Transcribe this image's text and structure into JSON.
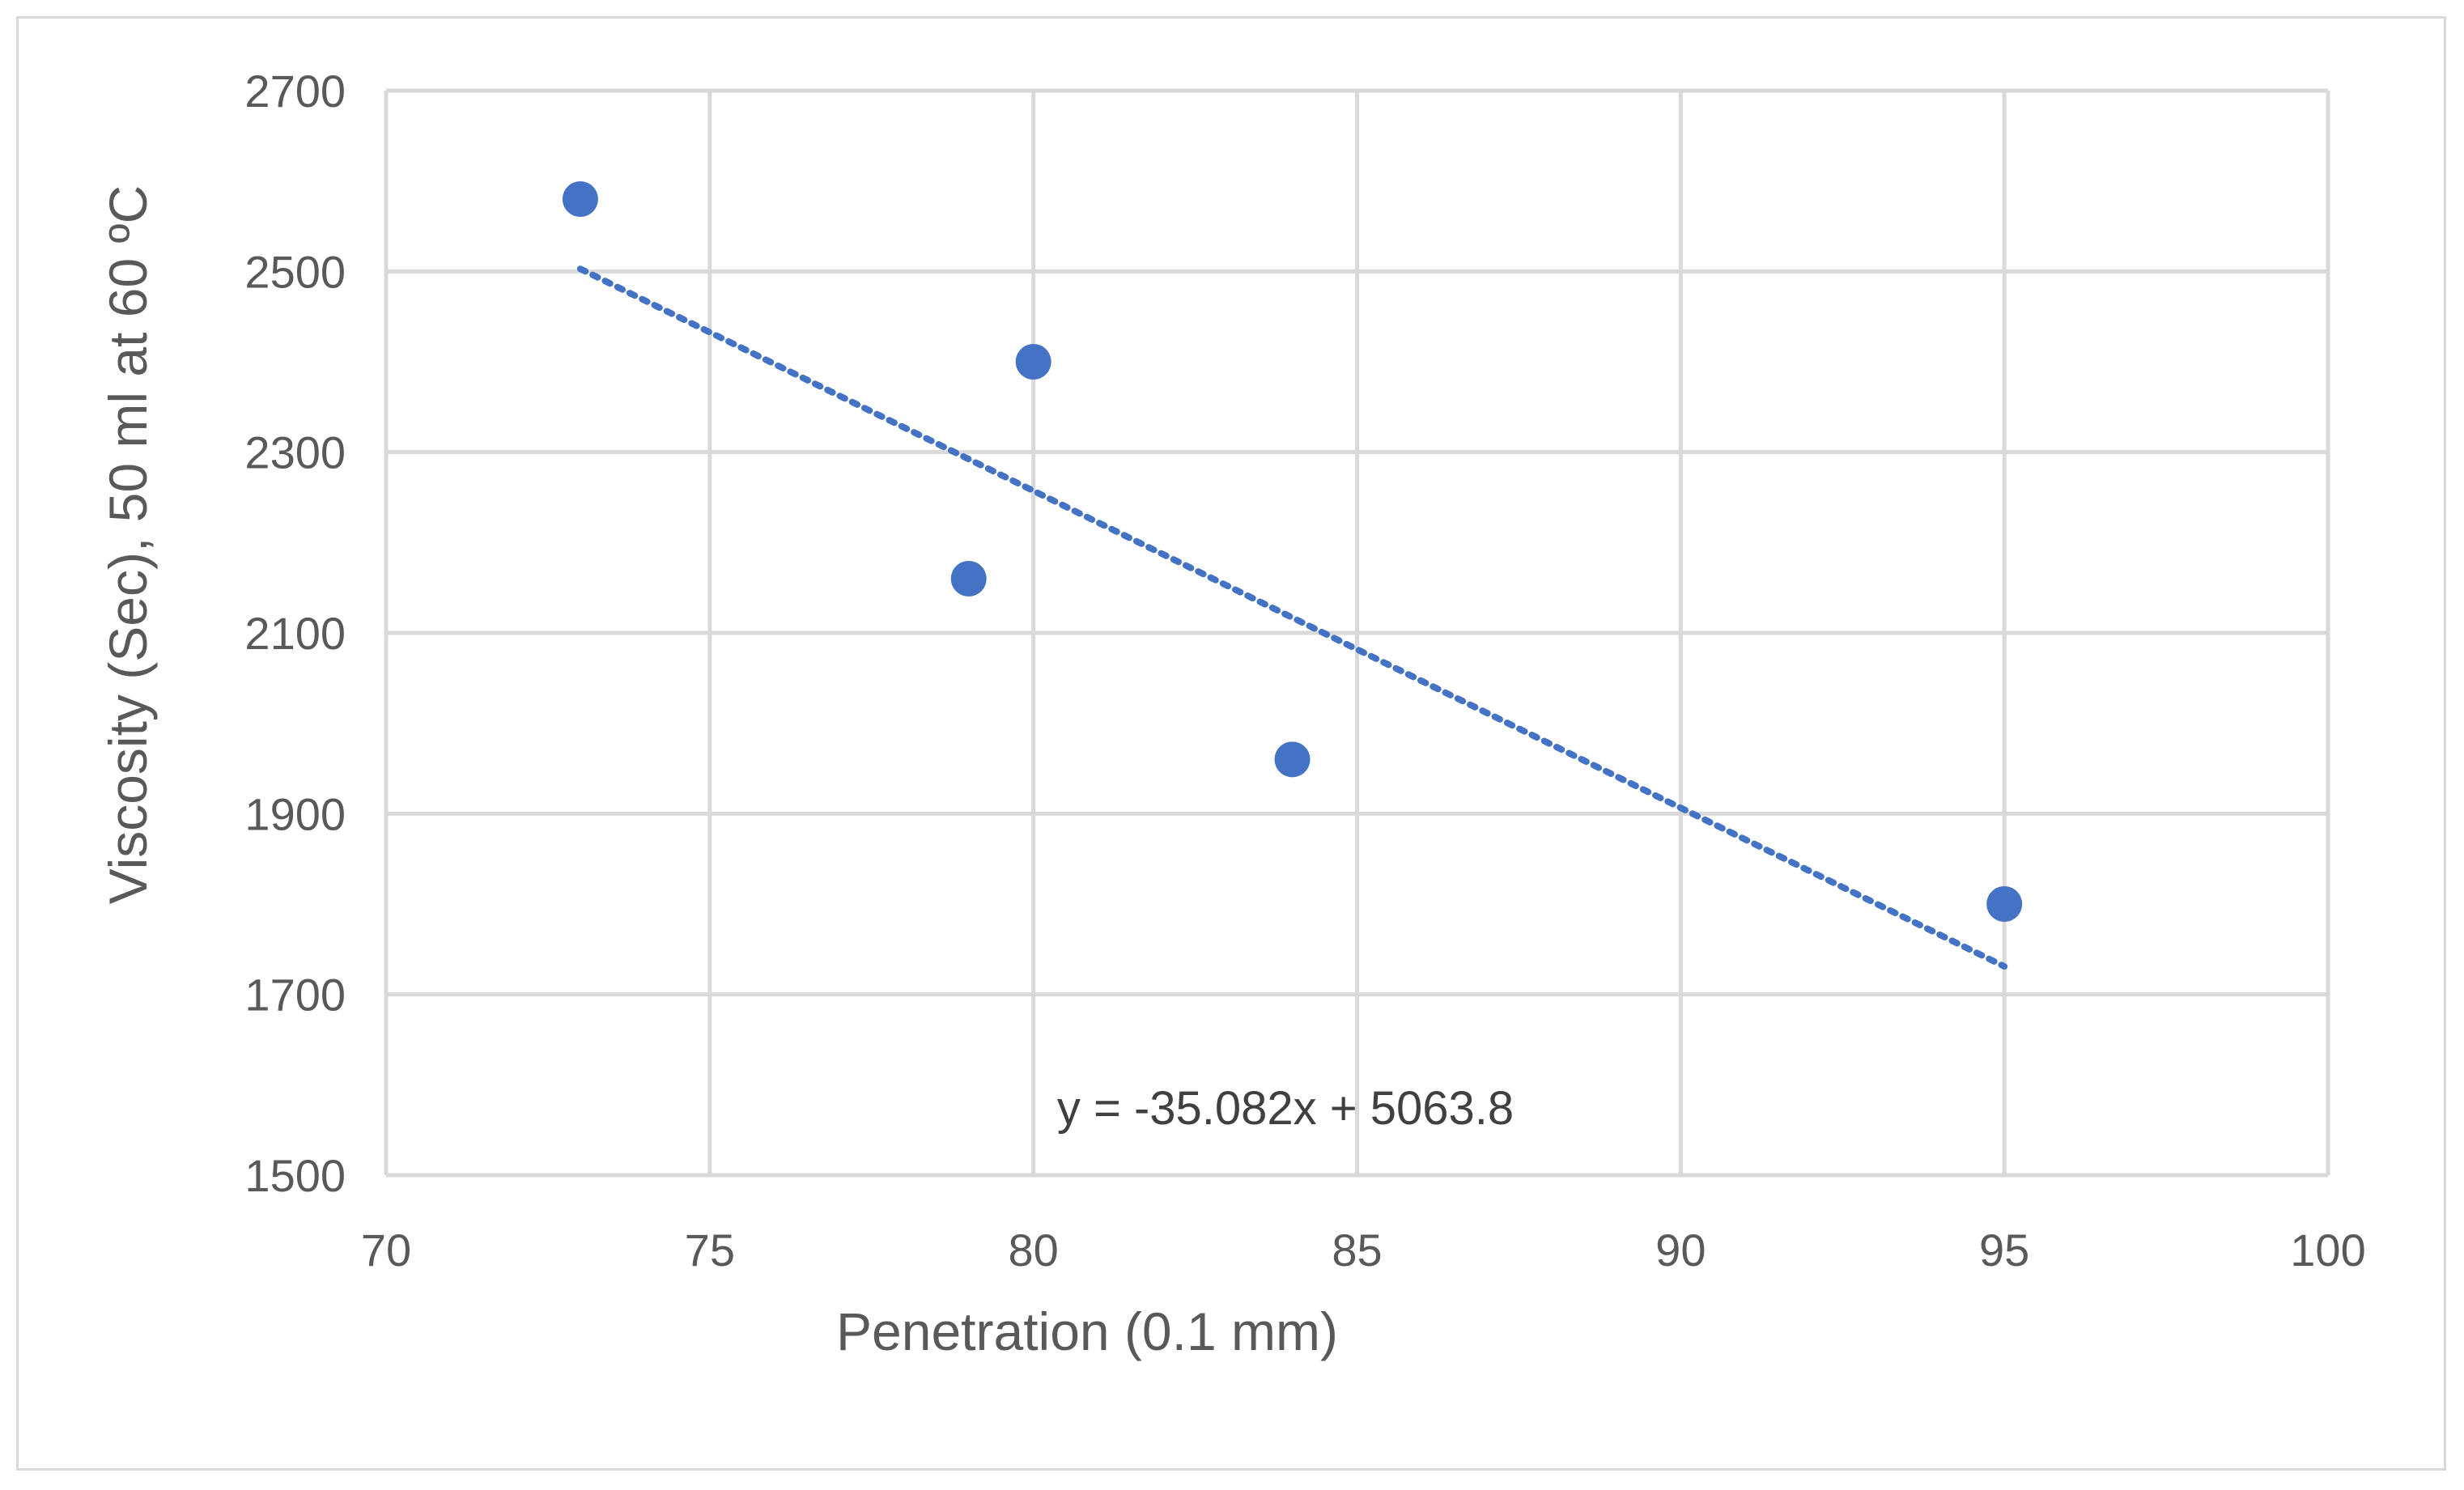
{
  "chart_data": {
    "type": "scatter",
    "title": "",
    "xlabel": "Penetration (0.1 mm)",
    "ylabel": "Viscosity (Sec), 50 ml at 60 ºC",
    "xlim": [
      70,
      100
    ],
    "ylim": [
      1500,
      2700
    ],
    "xticks": [
      70,
      75,
      80,
      85,
      90,
      95,
      100
    ],
    "yticks": [
      1500,
      1700,
      1900,
      2100,
      2300,
      2500,
      2700
    ],
    "grid": true,
    "series": [
      {
        "name": "Viscosity",
        "x": [
          73,
          79,
          80,
          84,
          95
        ],
        "y": [
          2580,
          2160,
          2400,
          1960,
          1800
        ]
      }
    ],
    "trendline": {
      "type": "linear",
      "slope": -35.082,
      "intercept": 5063.8,
      "x_range": [
        73,
        95
      ],
      "style": "dotted",
      "equation_label": "y = -35.082x + 5063.8"
    },
    "colors": {
      "marker": "#4472c4",
      "trendline": "#4472c4",
      "grid": "#d9d9d9",
      "text": "#595959"
    }
  }
}
